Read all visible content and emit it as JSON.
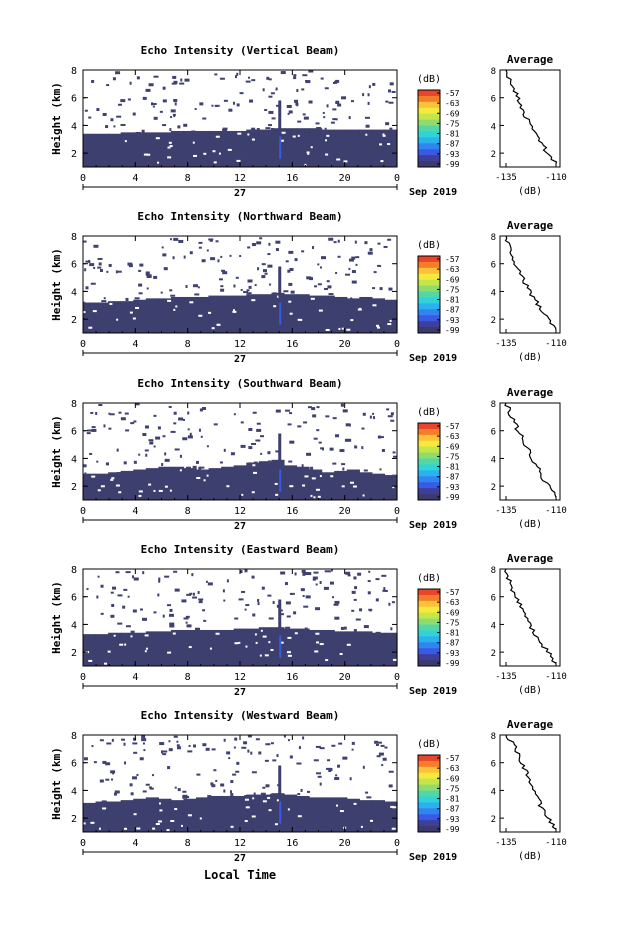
{
  "chart_data": {
    "type": "heatmap",
    "x_ticks": [
      "0",
      "4",
      "8",
      "12",
      "16",
      "20",
      "0"
    ],
    "day_label": "27",
    "date_label": "Sep 2019",
    "x_axis_label": "Local Time",
    "y_label": "Height (km)",
    "y_ticks": [
      "2",
      "4",
      "6",
      "8"
    ],
    "ylim": [
      1,
      8
    ],
    "colorbar": {
      "unit": "(dB)",
      "ticks": [
        "-57",
        "-63",
        "-69",
        "-75",
        "-81",
        "-87",
        "-93",
        "-99"
      ],
      "colors": [
        "#e8452a",
        "#f47d2b",
        "#fbc138",
        "#f4ea3d",
        "#c5e64a",
        "#8fdc6c",
        "#53d7a7",
        "#2fd3d8",
        "#2ab1ee",
        "#2f86f0",
        "#3a5ae6",
        "#3d3f9a",
        "#3a3a6c"
      ]
    },
    "profile": {
      "title": "Average",
      "xlabel": "(dB)",
      "x_ticks": [
        "-135",
        "-110"
      ],
      "y_ticks": [
        "2",
        "4",
        "6",
        "8"
      ],
      "xlim": [
        -138,
        -108
      ]
    },
    "panels": [
      {
        "title": "Echo Intensity (Vertical Beam)",
        "echo_top_km": [
          3.4,
          3.4,
          3.4,
          3.5,
          3.5,
          3.5,
          3.5,
          3.6,
          3.6,
          3.6,
          3.6,
          3.6,
          3.6,
          3.7,
          3.7,
          3.8,
          3.8,
          3.8,
          3.8,
          3.7,
          3.7,
          3.7,
          3.7,
          3.7,
          3.7
        ],
        "avg_profile": {
          "height_km": [
            1.2,
            2,
            3,
            4,
            5,
            6,
            7,
            8
          ],
          "db": [
            -110,
            -114,
            -119,
            -123,
            -126,
            -129,
            -132,
            -135
          ]
        }
      },
      {
        "title": "Echo Intensity (Northward Beam)",
        "echo_top_km": [
          3.2,
          3.2,
          3.3,
          3.3,
          3.4,
          3.5,
          3.5,
          3.6,
          3.6,
          3.6,
          3.7,
          3.7,
          3.7,
          3.8,
          3.8,
          3.9,
          3.8,
          3.8,
          3.7,
          3.7,
          3.6,
          3.5,
          3.6,
          3.5,
          3.4
        ],
        "avg_profile": {
          "height_km": [
            1.2,
            2,
            3,
            4,
            5,
            6,
            7,
            8
          ],
          "db": [
            -110,
            -114,
            -119,
            -123,
            -127,
            -130,
            -133,
            -135
          ]
        }
      },
      {
        "title": "Echo Intensity (Southward Beam)",
        "echo_top_km": [
          2.9,
          2.9,
          3.0,
          3.1,
          3.2,
          3.3,
          3.4,
          3.4,
          3.3,
          3.2,
          3.3,
          3.4,
          3.5,
          3.7,
          3.8,
          3.9,
          3.5,
          3.4,
          3.2,
          3.0,
          3.1,
          3.2,
          3.0,
          2.9,
          2.8
        ],
        "avg_profile": {
          "height_km": [
            1.2,
            2,
            3,
            4,
            5,
            6,
            7,
            8
          ],
          "db": [
            -110,
            -114,
            -118,
            -122,
            -125,
            -129,
            -132,
            -135
          ]
        }
      },
      {
        "title": "Echo Intensity (Eastward Beam)",
        "echo_top_km": [
          3.3,
          3.3,
          3.4,
          3.4,
          3.4,
          3.5,
          3.5,
          3.6,
          3.6,
          3.6,
          3.6,
          3.6,
          3.7,
          3.7,
          3.8,
          3.8,
          3.7,
          3.7,
          3.6,
          3.6,
          3.5,
          3.5,
          3.5,
          3.4,
          3.4
        ],
        "avg_profile": {
          "height_km": [
            1.2,
            2,
            3,
            4,
            5,
            6,
            7,
            8
          ],
          "db": [
            -110,
            -114,
            -119,
            -123,
            -126,
            -130,
            -133,
            -135
          ]
        }
      },
      {
        "title": "Echo Intensity (Westward Beam)",
        "echo_top_km": [
          3.1,
          3.2,
          3.2,
          3.3,
          3.4,
          3.5,
          3.4,
          3.3,
          3.4,
          3.5,
          3.6,
          3.6,
          3.6,
          3.7,
          3.7,
          3.8,
          3.7,
          3.6,
          3.5,
          3.5,
          3.5,
          3.4,
          3.3,
          3.3,
          3.2
        ],
        "avg_profile": {
          "height_km": [
            1.2,
            2,
            3,
            4,
            5,
            6,
            7,
            8
          ],
          "db": [
            -110,
            -114,
            -118,
            -121,
            -124,
            -127,
            -130,
            -135
          ]
        }
      }
    ]
  }
}
